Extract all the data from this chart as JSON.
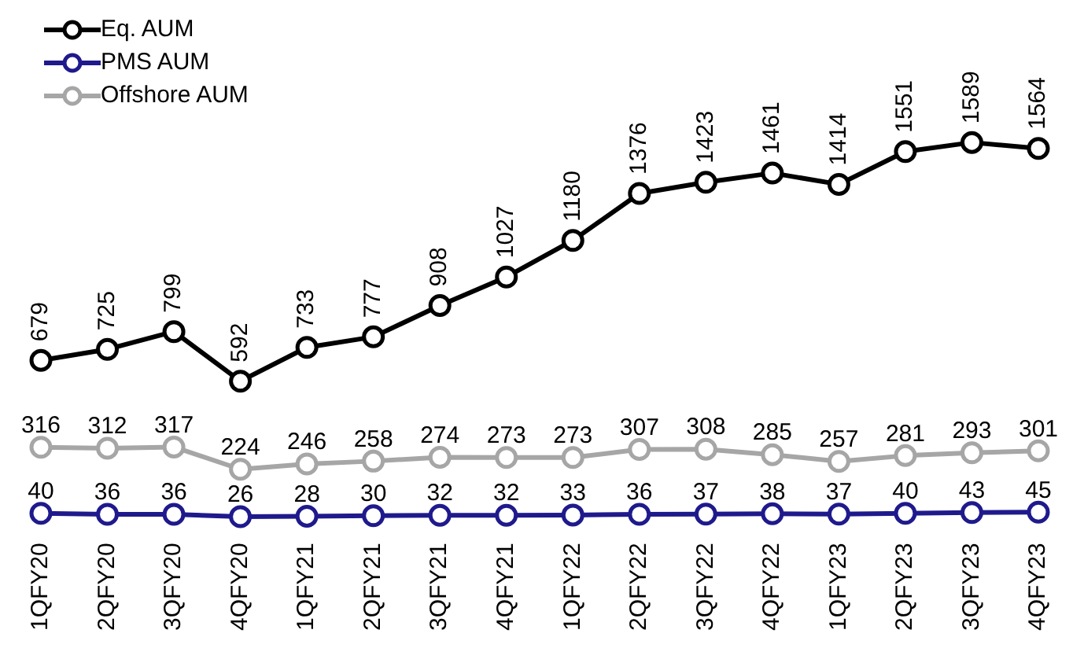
{
  "chart_data": {
    "type": "line",
    "categories": [
      "1QFY20",
      "2QFY20",
      "3QFY20",
      "4QFY20",
      "1QFY21",
      "2QFY21",
      "3QFY21",
      "4QFY21",
      "1QFY22",
      "2QFY22",
      "3QFY22",
      "4QFY22",
      "1QFY23",
      "2QFY23",
      "3QFY23",
      "4QFY23"
    ],
    "series": [
      {
        "name": "Eq. AUM",
        "color": "#000000",
        "values": [
          679,
          725,
          799,
          592,
          733,
          777,
          908,
          1027,
          1180,
          1376,
          1423,
          1461,
          1414,
          1551,
          1589,
          1564
        ]
      },
      {
        "name": "PMS AUM",
        "color": "#1f1a8c",
        "values": [
          40,
          36,
          36,
          26,
          28,
          30,
          32,
          32,
          33,
          36,
          37,
          38,
          37,
          40,
          43,
          45
        ]
      },
      {
        "name": "Offshore AUM",
        "color": "#a6a6a6",
        "values": [
          316,
          312,
          317,
          224,
          246,
          258,
          274,
          273,
          273,
          307,
          308,
          285,
          257,
          281,
          293,
          301
        ]
      }
    ],
    "data_labels": true,
    "legend": "top left",
    "marker": "circle",
    "grid": false
  }
}
